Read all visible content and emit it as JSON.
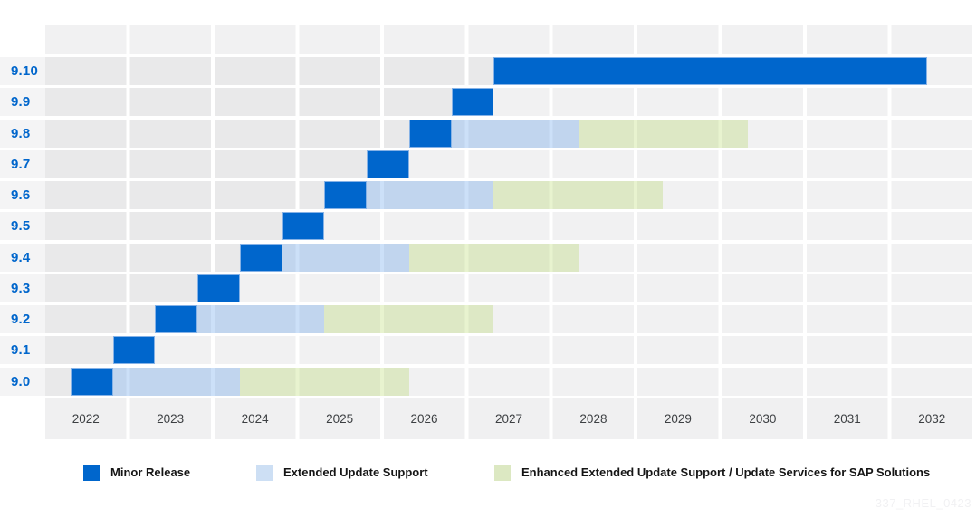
{
  "watermark": "337_RHEL_0423",
  "palette": {
    "minor_release": "#0066CC",
    "minor_release_border": "rgba(157,192,234,0.85)",
    "eus_fill": "rgba(158,195,242,0.52)",
    "e4s_fill": "rgba(209,232,159,0.50)",
    "row_elapsed": "#E9E9EA",
    "row_future": "#F1F1F2",
    "gutter": "#F4F4F5",
    "year_band": "#F0F0F1",
    "grid_gap": "#FFFFFF",
    "version_label": "#0066CC",
    "year_label": "#3C3F42",
    "legend_text": "#151515",
    "legend_eus_swatch": "#CDDFF4",
    "legend_e4s_swatch": "#DCE8C2",
    "watermark_color": "#F1F1F3"
  },
  "chart_data": {
    "type": "gantt",
    "title": "",
    "x_range": [
      2022,
      2033
    ],
    "x_tick_labels": [
      "2022",
      "2023",
      "2024",
      "2025",
      "2026",
      "2027",
      "2028",
      "2029",
      "2030",
      "2031",
      "2032"
    ],
    "rows": [
      {
        "label": "9.10",
        "segments": [
          {
            "series": "minor",
            "start": 2027.3,
            "end": 2032.42
          }
        ]
      },
      {
        "label": "9.9",
        "segments": [
          {
            "series": "minor",
            "start": 2026.8,
            "end": 2027.3
          }
        ]
      },
      {
        "label": "9.8",
        "segments": [
          {
            "series": "minor",
            "start": 2026.3,
            "end": 2026.8
          },
          {
            "series": "eus",
            "start": 2026.8,
            "end": 2028.3
          },
          {
            "series": "e4s",
            "start": 2028.3,
            "end": 2030.3
          }
        ]
      },
      {
        "label": "9.7",
        "segments": [
          {
            "series": "minor",
            "start": 2025.8,
            "end": 2026.3
          }
        ]
      },
      {
        "label": "9.6",
        "segments": [
          {
            "series": "minor",
            "start": 2025.3,
            "end": 2025.8
          },
          {
            "series": "eus",
            "start": 2025.8,
            "end": 2027.3
          },
          {
            "series": "e4s",
            "start": 2027.3,
            "end": 2029.3
          }
        ]
      },
      {
        "label": "9.5",
        "segments": [
          {
            "series": "minor",
            "start": 2024.8,
            "end": 2025.3
          }
        ]
      },
      {
        "label": "9.4",
        "segments": [
          {
            "series": "minor",
            "start": 2024.3,
            "end": 2024.8
          },
          {
            "series": "eus",
            "start": 2024.8,
            "end": 2026.3
          },
          {
            "series": "e4s",
            "start": 2026.3,
            "end": 2028.3
          }
        ]
      },
      {
        "label": "9.3",
        "segments": [
          {
            "series": "minor",
            "start": 2023.8,
            "end": 2024.3
          }
        ]
      },
      {
        "label": "9.2",
        "segments": [
          {
            "series": "minor",
            "start": 2023.3,
            "end": 2023.8
          },
          {
            "series": "eus",
            "start": 2023.8,
            "end": 2025.3
          },
          {
            "series": "e4s",
            "start": 2025.3,
            "end": 2027.3
          }
        ]
      },
      {
        "label": "9.1",
        "segments": [
          {
            "series": "minor",
            "start": 2022.8,
            "end": 2023.3
          }
        ]
      },
      {
        "label": "9.0",
        "segments": [
          {
            "series": "minor",
            "start": 2022.3,
            "end": 2022.8
          },
          {
            "series": "eus",
            "start": 2022.8,
            "end": 2024.3
          },
          {
            "series": "e4s",
            "start": 2024.3,
            "end": 2026.3
          }
        ]
      }
    ],
    "legend": [
      {
        "series": "minor",
        "label": "Minor Release"
      },
      {
        "series": "eus",
        "label": "Extended Update Support"
      },
      {
        "series": "e4s",
        "label": "Enhanced Extended Update Support / Update Services for SAP Solutions"
      }
    ],
    "legend_position": "bottom",
    "grid": "yearly columns with white separators"
  }
}
